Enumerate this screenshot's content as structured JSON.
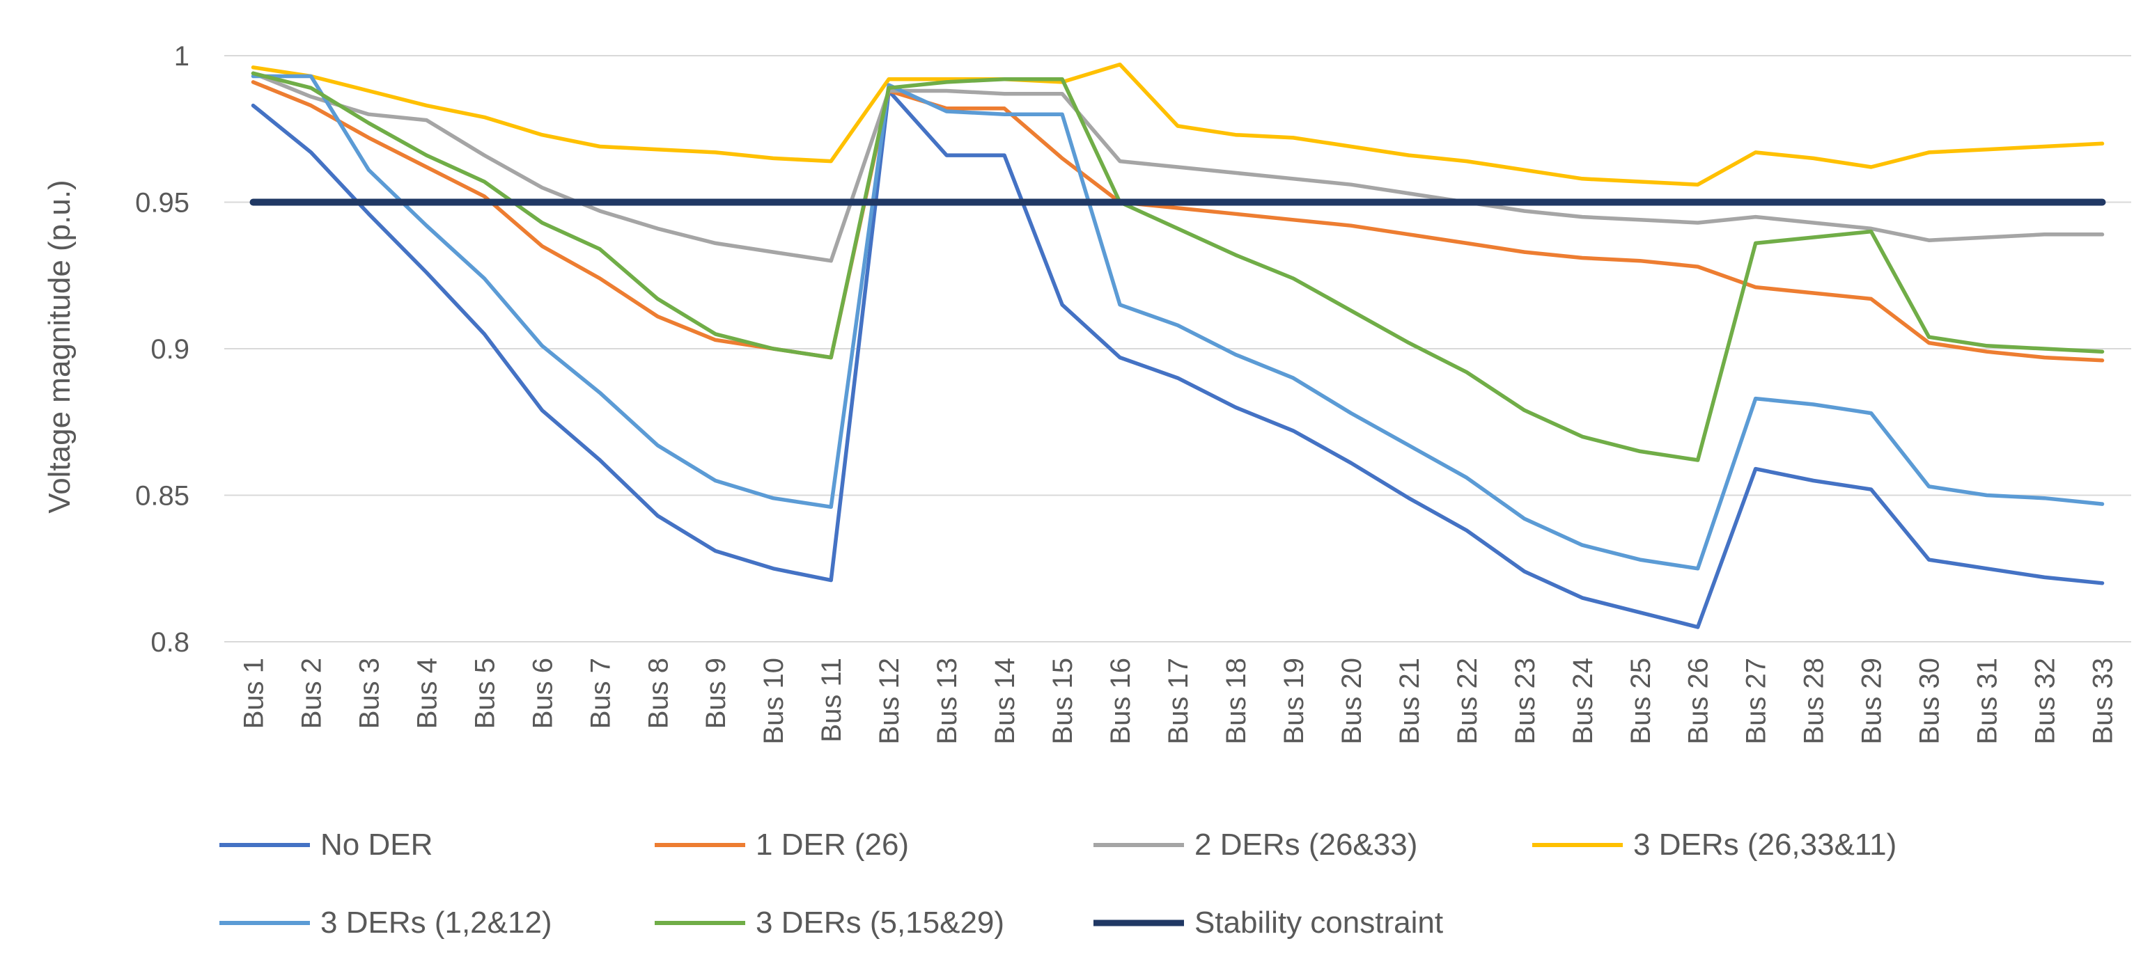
{
  "chart_data": {
    "type": "line",
    "title": "",
    "xlabel": "",
    "ylabel": "Voltage magnitude (p.u.)",
    "ylim": [
      0.8,
      1.0
    ],
    "yticks": [
      0.8,
      0.85,
      0.9,
      0.95,
      1
    ],
    "ytick_labels": [
      "0.8",
      "0.85",
      "0.9",
      "0.95",
      "1"
    ],
    "grid": true,
    "legend_position": "bottom",
    "categories": [
      "Bus 1",
      "Bus 2",
      "Bus 3",
      "Bus 4",
      "Bus 5",
      "Bus 6",
      "Bus 7",
      "Bus 8",
      "Bus 9",
      "Bus 10",
      "Bus 11",
      "Bus 12",
      "Bus 13",
      "Bus 14",
      "Bus 15",
      "Bus 16",
      "Bus 17",
      "Bus 18",
      "Bus 19",
      "Bus 20",
      "Bus 21",
      "Bus 22",
      "Bus 23",
      "Bus 24",
      "Bus 25",
      "Bus 26",
      "Bus 27",
      "Bus 28",
      "Bus 29",
      "Bus 30",
      "Bus 31",
      "Bus 32",
      "Bus 33"
    ],
    "series": [
      {
        "name": "No DER",
        "color": "#4472C4",
        "values": [
          0.983,
          0.967,
          0.946,
          0.926,
          0.905,
          0.879,
          0.862,
          0.843,
          0.831,
          0.825,
          0.821,
          0.988,
          0.966,
          0.966,
          0.915,
          0.897,
          0.89,
          0.88,
          0.872,
          0.861,
          0.849,
          0.838,
          0.824,
          0.815,
          0.81,
          0.805,
          0.859,
          0.855,
          0.852,
          0.828,
          0.825,
          0.822,
          0.82
        ]
      },
      {
        "name": "1 DER (26)",
        "color": "#ED7D31",
        "values": [
          0.991,
          0.983,
          0.972,
          0.962,
          0.952,
          0.935,
          0.924,
          0.911,
          0.903,
          0.9,
          0.897,
          0.988,
          0.982,
          0.982,
          0.965,
          0.95,
          0.948,
          0.946,
          0.944,
          0.942,
          0.939,
          0.936,
          0.933,
          0.931,
          0.93,
          0.928,
          0.921,
          0.919,
          0.917,
          0.902,
          0.899,
          0.897,
          0.896
        ]
      },
      {
        "name": "2 DERs (26&33)",
        "color": "#A5A5A5",
        "values": [
          0.994,
          0.986,
          0.98,
          0.978,
          0.966,
          0.955,
          0.947,
          0.941,
          0.936,
          0.933,
          0.93,
          0.988,
          0.988,
          0.987,
          0.987,
          0.964,
          0.962,
          0.96,
          0.958,
          0.956,
          0.953,
          0.95,
          0.947,
          0.945,
          0.944,
          0.943,
          0.945,
          0.943,
          0.941,
          0.937,
          0.938,
          0.939,
          0.939
        ]
      },
      {
        "name": "3 DERs (26,33&11)",
        "color": "#FFC000",
        "values": [
          0.996,
          0.993,
          0.988,
          0.983,
          0.979,
          0.973,
          0.969,
          0.968,
          0.967,
          0.965,
          0.964,
          0.992,
          0.992,
          0.992,
          0.991,
          0.997,
          0.976,
          0.973,
          0.972,
          0.969,
          0.966,
          0.964,
          0.961,
          0.958,
          0.957,
          0.956,
          0.967,
          0.965,
          0.962,
          0.967,
          0.968,
          0.969,
          0.97
        ]
      },
      {
        "name": "3 DERs (1,2&12)",
        "color": "#5B9BD5",
        "values": [
          0.993,
          0.993,
          0.961,
          0.942,
          0.924,
          0.901,
          0.885,
          0.867,
          0.855,
          0.849,
          0.846,
          0.99,
          0.981,
          0.98,
          0.98,
          0.915,
          0.908,
          0.898,
          0.89,
          0.878,
          0.867,
          0.856,
          0.842,
          0.833,
          0.828,
          0.825,
          0.883,
          0.881,
          0.878,
          0.853,
          0.85,
          0.849,
          0.847
        ]
      },
      {
        "name": "3 DERs (5,15&29)",
        "color": "#70AD47",
        "values": [
          0.994,
          0.989,
          0.977,
          0.966,
          0.957,
          0.943,
          0.934,
          0.917,
          0.905,
          0.9,
          0.897,
          0.989,
          0.991,
          0.992,
          0.992,
          0.95,
          0.941,
          0.932,
          0.924,
          0.913,
          0.902,
          0.892,
          0.879,
          0.87,
          0.865,
          0.862,
          0.936,
          0.938,
          0.94,
          0.904,
          0.901,
          0.9,
          0.899
        ]
      },
      {
        "name": "Stability constraint",
        "color": "#203864",
        "values": [
          0.95,
          0.95,
          0.95,
          0.95,
          0.95,
          0.95,
          0.95,
          0.95,
          0.95,
          0.95,
          0.95,
          0.95,
          0.95,
          0.95,
          0.95,
          0.95,
          0.95,
          0.95,
          0.95,
          0.95,
          0.95,
          0.95,
          0.95,
          0.95,
          0.95,
          0.95,
          0.95,
          0.95,
          0.95,
          0.95,
          0.95,
          0.95,
          0.95
        ]
      }
    ]
  }
}
